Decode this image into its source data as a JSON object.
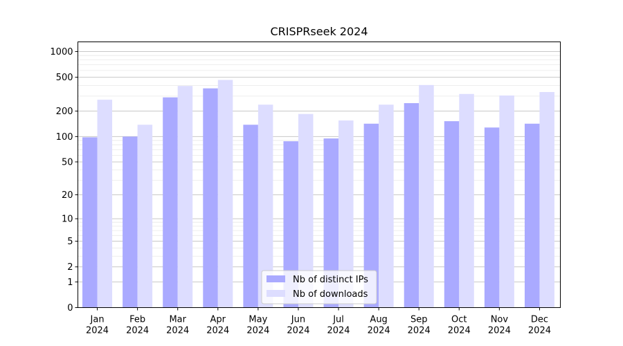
{
  "chart_data": {
    "type": "bar",
    "title": "CRISPRseek 2024",
    "xlabel": "",
    "ylabel": "",
    "yscale": "log(1+y)",
    "ylim": [
      0,
      1300
    ],
    "yticks": [
      0,
      1,
      2,
      5,
      10,
      20,
      50,
      100,
      200,
      500,
      1000
    ],
    "grid": true,
    "legend_position": "bottom-center",
    "categories": [
      [
        "Jan",
        "2024"
      ],
      [
        "Feb",
        "2024"
      ],
      [
        "Mar",
        "2024"
      ],
      [
        "Apr",
        "2024"
      ],
      [
        "May",
        "2024"
      ],
      [
        "Jun",
        "2024"
      ],
      [
        "Jul",
        "2024"
      ],
      [
        "Aug",
        "2024"
      ],
      [
        "Sep",
        "2024"
      ],
      [
        "Oct",
        "2024"
      ],
      [
        "Nov",
        "2024"
      ],
      [
        "Dec",
        "2024"
      ]
    ],
    "series": [
      {
        "name": "Nb of distinct IPs",
        "color": "#aaaaff",
        "values": [
          98,
          100,
          290,
          370,
          138,
          88,
          95,
          142,
          248,
          152,
          128,
          142
        ]
      },
      {
        "name": "Nb of downloads",
        "color": "#ddddff",
        "values": [
          272,
          138,
          395,
          465,
          238,
          185,
          155,
          238,
          405,
          318,
          305,
          335
        ]
      }
    ]
  }
}
